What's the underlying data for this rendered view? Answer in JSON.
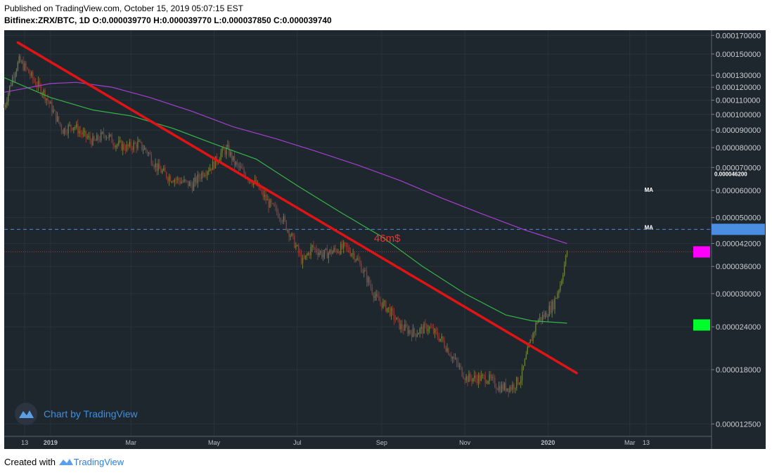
{
  "header": {
    "published": "Published on TradingView.com, October 15, 2019 05:07:15 EST",
    "symbol": "Bitfinex:ZRX/BTC, 1D",
    "o_label": "O:",
    "o_value": "0.000039770",
    "h_label": "H:",
    "h_value": "0.000039770",
    "l_label": "L:",
    "l_value": "0.000037850",
    "c_label": "C:",
    "c_value": "0.000039740"
  },
  "watermark": {
    "text": "Chart by TradingView"
  },
  "footer": {
    "created_with": "Created with",
    "brand": "TradingView"
  },
  "colors": {
    "background": "#1e262e",
    "up_candle": "#6b7d3a",
    "down_candle": "#8a3b38",
    "ma_short": "#36b545",
    "ma_long": "#a53fcf",
    "trendline": "#e01414",
    "annotation": "#e8332e",
    "price_label": "#4b8de0",
    "marker_magenta": "#ff00ff",
    "marker_green": "#00ff2a"
  },
  "chart_data": {
    "type": "candlestick",
    "scale": "log",
    "ylim": [
      1.15e-05,
      0.000176
    ],
    "x_range": [
      "2018-11-28",
      "2020-04-30"
    ],
    "y_ticks": [
      "0.000170000",
      "0.000150000",
      "0.000130000",
      "0.000120000",
      "0.000110000",
      "0.000100000",
      "0.000090000",
      "0.000080000",
      "0.000070000",
      "0.000060000",
      "0.000050000",
      "0.000042000",
      "0.000036000",
      "0.000030000",
      "0.000024000",
      "0.000018000",
      "0.000012500"
    ],
    "y_tick_values": [
      0.00017,
      0.00015,
      0.00013,
      0.00012,
      0.00011,
      0.0001,
      9e-05,
      8e-05,
      7e-05,
      6e-05,
      5e-05,
      4.2e-05,
      3.6e-05,
      3e-05,
      2.4e-05,
      1.8e-05,
      1.25e-05
    ],
    "x_ticks": [
      {
        "label": "13",
        "date": "2018-12-13"
      },
      {
        "label": "2019",
        "date": "2019-01-01"
      },
      {
        "label": "Mar",
        "date": "2019-03-01"
      },
      {
        "label": "May",
        "date": "2019-05-01"
      },
      {
        "label": "Jul",
        "date": "2019-07-01"
      },
      {
        "label": "Sep",
        "date": "2019-09-01"
      },
      {
        "label": "Nov",
        "date": "2019-11-01"
      },
      {
        "label": "2020",
        "date": "2020-01-01"
      },
      {
        "label": "Mar",
        "date": "2020-03-01"
      },
      {
        "label": "13",
        "date": "2020-03-13"
      }
    ],
    "close_path": [
      [
        "2018-11-28",
        0.000105
      ],
      [
        "2018-12-02",
        0.00012
      ],
      [
        "2018-12-05",
        0.000132
      ],
      [
        "2018-12-09",
        0.000143
      ],
      [
        "2018-12-14",
        0.000136
      ],
      [
        "2018-12-20",
        0.000125
      ],
      [
        "2018-12-27",
        0.000116
      ],
      [
        "2019-01-04",
        0.0001
      ],
      [
        "2019-01-10",
        9e-05
      ],
      [
        "2019-01-18",
        9.3e-05
      ],
      [
        "2019-01-25",
        8.7e-05
      ],
      [
        "2019-02-02",
        8.3e-05
      ],
      [
        "2019-02-10",
        8.8e-05
      ],
      [
        "2019-02-18",
        8.2e-05
      ],
      [
        "2019-02-26",
        8e-05
      ],
      [
        "2019-03-06",
        8.2e-05
      ],
      [
        "2019-03-13",
        7.8e-05
      ],
      [
        "2019-03-20",
        7e-05
      ],
      [
        "2019-03-28",
        6.6e-05
      ],
      [
        "2019-04-06",
        6.4e-05
      ],
      [
        "2019-04-15",
        6.2e-05
      ],
      [
        "2019-04-23",
        6.8e-05
      ],
      [
        "2019-04-30",
        7.1e-05
      ],
      [
        "2019-05-06",
        7.7e-05
      ],
      [
        "2019-05-11",
        7.9e-05
      ],
      [
        "2019-05-16",
        7.2e-05
      ],
      [
        "2019-05-22",
        6.8e-05
      ],
      [
        "2019-05-31",
        6.3e-05
      ],
      [
        "2019-06-10",
        5.5e-05
      ],
      [
        "2019-06-20",
        5e-05
      ],
      [
        "2019-06-28",
        4.3e-05
      ],
      [
        "2019-07-05",
        3.7e-05
      ],
      [
        "2019-07-12",
        4.1e-05
      ],
      [
        "2019-07-20",
        3.9e-05
      ],
      [
        "2019-07-28",
        4e-05
      ],
      [
        "2019-08-05",
        4.1e-05
      ],
      [
        "2019-08-12",
        3.9e-05
      ],
      [
        "2019-08-20",
        3.4e-05
      ],
      [
        "2019-08-28",
        2.9e-05
      ],
      [
        "2019-09-06",
        2.7e-05
      ],
      [
        "2019-09-15",
        2.4e-05
      ],
      [
        "2019-09-25",
        2.3e-05
      ],
      [
        "2019-10-05",
        2.4e-05
      ],
      [
        "2019-10-15",
        2.2e-05
      ],
      [
        "2019-10-25",
        1.9e-05
      ],
      [
        "2019-11-02",
        1.7e-05
      ],
      [
        "2019-11-10",
        1.7e-05
      ],
      [
        "2019-11-18",
        1.7e-05
      ],
      [
        "2019-11-26",
        1.6e-05
      ],
      [
        "2019-12-05",
        1.6e-05
      ],
      [
        "2019-12-12",
        1.7e-05
      ],
      [
        "2019-12-18",
        2.1e-05
      ],
      [
        "2019-12-24",
        2.5e-05
      ],
      [
        "2019-12-30",
        2.6e-05
      ],
      [
        "2020-01-05",
        2.8e-05
      ],
      [
        "2020-01-10",
        3.2e-05
      ],
      [
        "2020-01-15",
        3.97e-05
      ]
    ],
    "ma_long": [
      [
        "2018-11-28",
        0.000116
      ],
      [
        "2019-01-01",
        0.000123
      ],
      [
        "2019-01-20",
        0.000124
      ],
      [
        "2019-02-15",
        0.00012
      ],
      [
        "2019-03-15",
        0.000112
      ],
      [
        "2019-04-15",
        0.000102
      ],
      [
        "2019-05-15",
        9.2e-05
      ],
      [
        "2019-06-15",
        8.5e-05
      ],
      [
        "2019-07-15",
        7.8e-05
      ],
      [
        "2019-08-15",
        7.1e-05
      ],
      [
        "2019-09-15",
        6.4e-05
      ],
      [
        "2019-10-15",
        5.7e-05
      ],
      [
        "2019-11-15",
        5.1e-05
      ],
      [
        "2019-12-15",
        4.6e-05
      ],
      [
        "2020-01-15",
        4.2e-05
      ]
    ],
    "ma_short": [
      [
        "2018-11-28",
        0.000128
      ],
      [
        "2019-01-01",
        0.000112
      ],
      [
        "2019-02-01",
        0.000103
      ],
      [
        "2019-03-01",
        9.9e-05
      ],
      [
        "2019-04-01",
        9.1e-05
      ],
      [
        "2019-05-01",
        8.2e-05
      ],
      [
        "2019-06-01",
        7.4e-05
      ],
      [
        "2019-07-01",
        6.2e-05
      ],
      [
        "2019-08-01",
        5.2e-05
      ],
      [
        "2019-09-01",
        4.4e-05
      ],
      [
        "2019-10-01",
        3.6e-05
      ],
      [
        "2019-11-01",
        3e-05
      ],
      [
        "2019-12-01",
        2.6e-05
      ],
      [
        "2019-12-20",
        2.5e-05
      ],
      [
        "2020-01-15",
        2.46e-05
      ]
    ],
    "trendline": {
      "start": [
        "2018-12-08",
        0.000162
      ],
      "end": [
        "2020-01-22",
        1.76e-05
      ]
    },
    "horizontal_lines": [
      {
        "value": 4.62e-05,
        "style": "dashed",
        "color": "#4b8de0"
      },
      {
        "value": 3.974e-05,
        "style": "dotted",
        "color": "#b04040"
      }
    ],
    "annotations": [
      {
        "text": "46m$",
        "date": "2019-09-05",
        "value": 4.25e-05
      },
      {
        "text": "MA",
        "date": "2020-03-15",
        "value": 5.95e-05
      },
      {
        "text": "MA",
        "date": "2020-03-15",
        "value": 4.62e-05
      }
    ],
    "price_labels": [
      {
        "text": "0.000046200",
        "value": 4.62e-05
      }
    ],
    "markers": [
      {
        "color": "#ff00ff",
        "value": 3.97e-05
      },
      {
        "color": "#00ff2a",
        "value": 2.43e-05
      }
    ]
  }
}
